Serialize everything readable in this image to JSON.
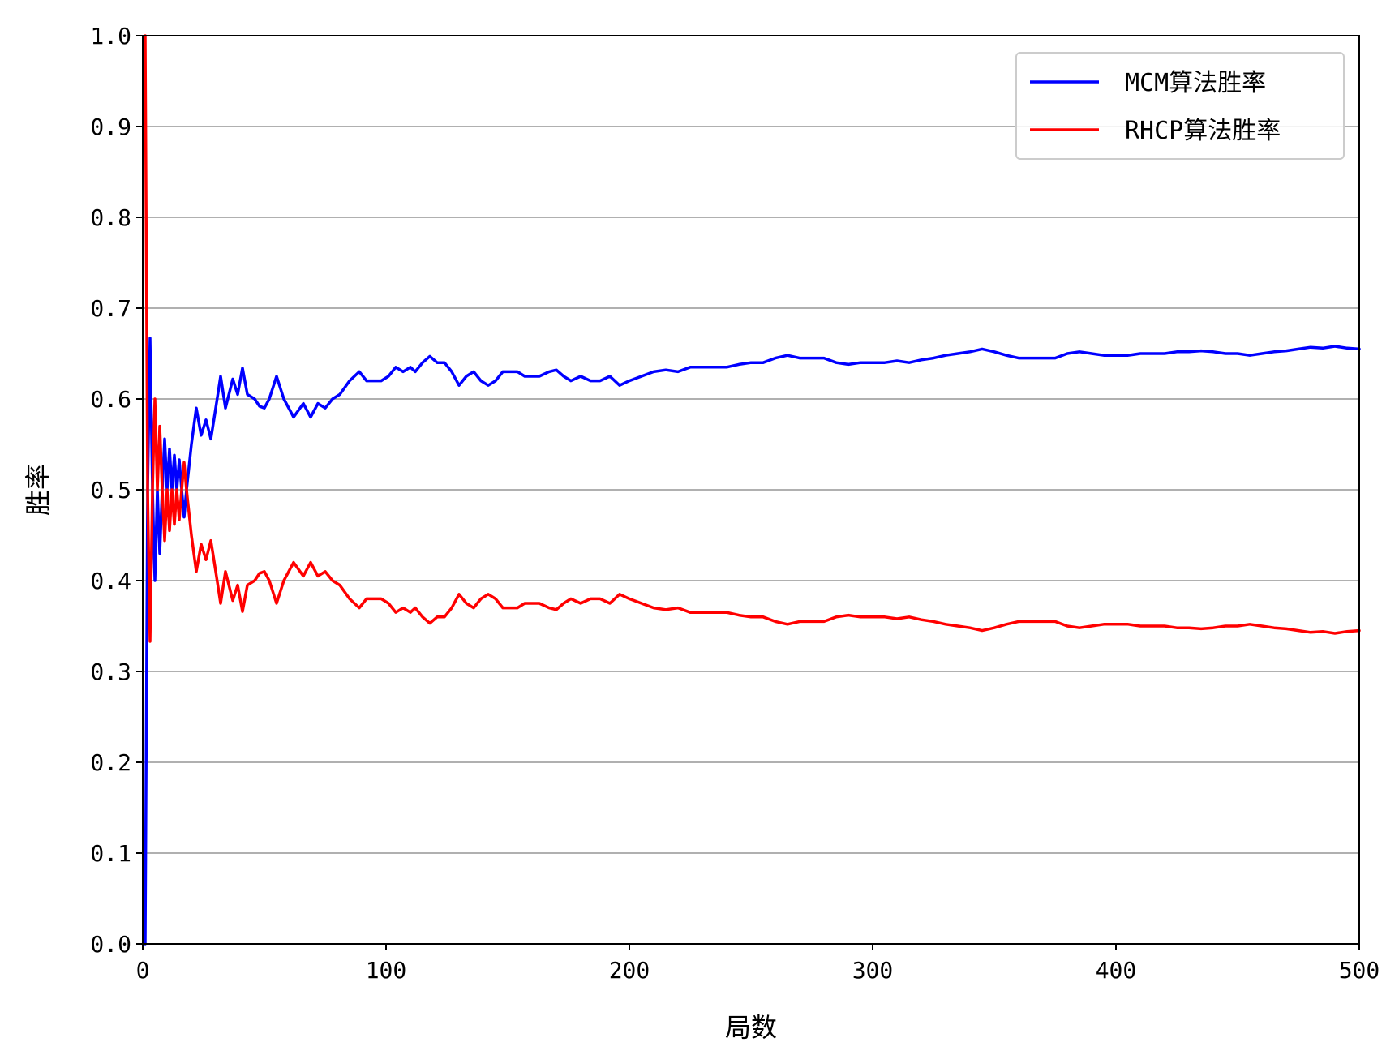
{
  "chart_data": {
    "type": "line",
    "title": "",
    "xlabel": "局数",
    "ylabel": "胜率",
    "xlim": [
      0,
      500
    ],
    "ylim": [
      0.0,
      1.0
    ],
    "x_ticks": [
      "0",
      "100",
      "200",
      "300",
      "400",
      "500"
    ],
    "y_ticks": [
      "0.0",
      "0.1",
      "0.2",
      "0.3",
      "0.4",
      "0.5",
      "0.6",
      "0.7",
      "0.8",
      "0.9",
      "1.0"
    ],
    "grid": "horizontal",
    "legend_position": "top-right",
    "series": [
      {
        "name": "MCM算法胜率",
        "color": "#0000ff",
        "points": [
          [
            1,
            0.0
          ],
          [
            2,
            0.5
          ],
          [
            3,
            0.667
          ],
          [
            4,
            0.5
          ],
          [
            5,
            0.4
          ],
          [
            6,
            0.5
          ],
          [
            7,
            0.43
          ],
          [
            8,
            0.5
          ],
          [
            9,
            0.556
          ],
          [
            10,
            0.5
          ],
          [
            11,
            0.545
          ],
          [
            12,
            0.5
          ],
          [
            13,
            0.538
          ],
          [
            14,
            0.5
          ],
          [
            15,
            0.533
          ],
          [
            16,
            0.5
          ],
          [
            17,
            0.47
          ],
          [
            18,
            0.5
          ],
          [
            20,
            0.55
          ],
          [
            22,
            0.59
          ],
          [
            24,
            0.56
          ],
          [
            26,
            0.577
          ],
          [
            28,
            0.556
          ],
          [
            30,
            0.59
          ],
          [
            32,
            0.625
          ],
          [
            34,
            0.59
          ],
          [
            37,
            0.622
          ],
          [
            39,
            0.605
          ],
          [
            41,
            0.634
          ],
          [
            43,
            0.605
          ],
          [
            46,
            0.6
          ],
          [
            48,
            0.592
          ],
          [
            50,
            0.59
          ],
          [
            52,
            0.6
          ],
          [
            55,
            0.625
          ],
          [
            58,
            0.6
          ],
          [
            62,
            0.58
          ],
          [
            66,
            0.595
          ],
          [
            69,
            0.58
          ],
          [
            72,
            0.595
          ],
          [
            75,
            0.59
          ],
          [
            78,
            0.6
          ],
          [
            81,
            0.605
          ],
          [
            85,
            0.62
          ],
          [
            89,
            0.63
          ],
          [
            92,
            0.62
          ],
          [
            95,
            0.62
          ],
          [
            98,
            0.62
          ],
          [
            101,
            0.625
          ],
          [
            104,
            0.635
          ],
          [
            107,
            0.63
          ],
          [
            110,
            0.635
          ],
          [
            112,
            0.63
          ],
          [
            115,
            0.64
          ],
          [
            118,
            0.647
          ],
          [
            121,
            0.64
          ],
          [
            124,
            0.64
          ],
          [
            127,
            0.63
          ],
          [
            130,
            0.615
          ],
          [
            133,
            0.625
          ],
          [
            136,
            0.63
          ],
          [
            139,
            0.62
          ],
          [
            142,
            0.615
          ],
          [
            145,
            0.62
          ],
          [
            148,
            0.63
          ],
          [
            151,
            0.63
          ],
          [
            154,
            0.63
          ],
          [
            157,
            0.625
          ],
          [
            160,
            0.625
          ],
          [
            163,
            0.625
          ],
          [
            167,
            0.63
          ],
          [
            170,
            0.632
          ],
          [
            173,
            0.625
          ],
          [
            176,
            0.62
          ],
          [
            180,
            0.625
          ],
          [
            184,
            0.62
          ],
          [
            188,
            0.62
          ],
          [
            192,
            0.625
          ],
          [
            196,
            0.615
          ],
          [
            200,
            0.62
          ],
          [
            205,
            0.625
          ],
          [
            210,
            0.63
          ],
          [
            215,
            0.632
          ],
          [
            220,
            0.63
          ],
          [
            225,
            0.635
          ],
          [
            230,
            0.635
          ],
          [
            235,
            0.635
          ],
          [
            240,
            0.635
          ],
          [
            245,
            0.638
          ],
          [
            250,
            0.64
          ],
          [
            255,
            0.64
          ],
          [
            260,
            0.645
          ],
          [
            265,
            0.648
          ],
          [
            270,
            0.645
          ],
          [
            275,
            0.645
          ],
          [
            280,
            0.645
          ],
          [
            285,
            0.64
          ],
          [
            290,
            0.638
          ],
          [
            295,
            0.64
          ],
          [
            300,
            0.64
          ],
          [
            305,
            0.64
          ],
          [
            310,
            0.642
          ],
          [
            315,
            0.64
          ],
          [
            320,
            0.643
          ],
          [
            325,
            0.645
          ],
          [
            330,
            0.648
          ],
          [
            335,
            0.65
          ],
          [
            340,
            0.652
          ],
          [
            345,
            0.655
          ],
          [
            350,
            0.652
          ],
          [
            355,
            0.648
          ],
          [
            360,
            0.645
          ],
          [
            365,
            0.645
          ],
          [
            370,
            0.645
          ],
          [
            375,
            0.645
          ],
          [
            380,
            0.65
          ],
          [
            385,
            0.652
          ],
          [
            390,
            0.65
          ],
          [
            395,
            0.648
          ],
          [
            400,
            0.648
          ],
          [
            405,
            0.648
          ],
          [
            410,
            0.65
          ],
          [
            415,
            0.65
          ],
          [
            420,
            0.65
          ],
          [
            425,
            0.652
          ],
          [
            430,
            0.652
          ],
          [
            435,
            0.653
          ],
          [
            440,
            0.652
          ],
          [
            445,
            0.65
          ],
          [
            450,
            0.65
          ],
          [
            455,
            0.648
          ],
          [
            460,
            0.65
          ],
          [
            465,
            0.652
          ],
          [
            470,
            0.653
          ],
          [
            475,
            0.655
          ],
          [
            480,
            0.657
          ],
          [
            485,
            0.656
          ],
          [
            490,
            0.658
          ],
          [
            495,
            0.656
          ],
          [
            500,
            0.655
          ]
        ]
      },
      {
        "name": "RHCP算法胜率",
        "color": "#ff0000",
        "points": [
          [
            1,
            1.0
          ],
          [
            2,
            0.5
          ],
          [
            3,
            0.333
          ],
          [
            4,
            0.5
          ],
          [
            5,
            0.6
          ],
          [
            6,
            0.5
          ],
          [
            7,
            0.57
          ],
          [
            8,
            0.5
          ],
          [
            9,
            0.444
          ],
          [
            10,
            0.5
          ],
          [
            11,
            0.455
          ],
          [
            12,
            0.5
          ],
          [
            13,
            0.462
          ],
          [
            14,
            0.5
          ],
          [
            15,
            0.467
          ],
          [
            16,
            0.5
          ],
          [
            17,
            0.53
          ],
          [
            18,
            0.5
          ],
          [
            20,
            0.45
          ],
          [
            22,
            0.41
          ],
          [
            24,
            0.44
          ],
          [
            26,
            0.423
          ],
          [
            28,
            0.444
          ],
          [
            30,
            0.41
          ],
          [
            32,
            0.375
          ],
          [
            34,
            0.41
          ],
          [
            37,
            0.378
          ],
          [
            39,
            0.395
          ],
          [
            41,
            0.366
          ],
          [
            43,
            0.395
          ],
          [
            46,
            0.4
          ],
          [
            48,
            0.408
          ],
          [
            50,
            0.41
          ],
          [
            52,
            0.4
          ],
          [
            55,
            0.375
          ],
          [
            58,
            0.4
          ],
          [
            62,
            0.42
          ],
          [
            66,
            0.405
          ],
          [
            69,
            0.42
          ],
          [
            72,
            0.405
          ],
          [
            75,
            0.41
          ],
          [
            78,
            0.4
          ],
          [
            81,
            0.395
          ],
          [
            85,
            0.38
          ],
          [
            89,
            0.37
          ],
          [
            92,
            0.38
          ],
          [
            95,
            0.38
          ],
          [
            98,
            0.38
          ],
          [
            101,
            0.375
          ],
          [
            104,
            0.365
          ],
          [
            107,
            0.37
          ],
          [
            110,
            0.365
          ],
          [
            112,
            0.37
          ],
          [
            115,
            0.36
          ],
          [
            118,
            0.353
          ],
          [
            121,
            0.36
          ],
          [
            124,
            0.36
          ],
          [
            127,
            0.37
          ],
          [
            130,
            0.385
          ],
          [
            133,
            0.375
          ],
          [
            136,
            0.37
          ],
          [
            139,
            0.38
          ],
          [
            142,
            0.385
          ],
          [
            145,
            0.38
          ],
          [
            148,
            0.37
          ],
          [
            151,
            0.37
          ],
          [
            154,
            0.37
          ],
          [
            157,
            0.375
          ],
          [
            160,
            0.375
          ],
          [
            163,
            0.375
          ],
          [
            167,
            0.37
          ],
          [
            170,
            0.368
          ],
          [
            173,
            0.375
          ],
          [
            176,
            0.38
          ],
          [
            180,
            0.375
          ],
          [
            184,
            0.38
          ],
          [
            188,
            0.38
          ],
          [
            192,
            0.375
          ],
          [
            196,
            0.385
          ],
          [
            200,
            0.38
          ],
          [
            205,
            0.375
          ],
          [
            210,
            0.37
          ],
          [
            215,
            0.368
          ],
          [
            220,
            0.37
          ],
          [
            225,
            0.365
          ],
          [
            230,
            0.365
          ],
          [
            235,
            0.365
          ],
          [
            240,
            0.365
          ],
          [
            245,
            0.362
          ],
          [
            250,
            0.36
          ],
          [
            255,
            0.36
          ],
          [
            260,
            0.355
          ],
          [
            265,
            0.352
          ],
          [
            270,
            0.355
          ],
          [
            275,
            0.355
          ],
          [
            280,
            0.355
          ],
          [
            285,
            0.36
          ],
          [
            290,
            0.362
          ],
          [
            295,
            0.36
          ],
          [
            300,
            0.36
          ],
          [
            305,
            0.36
          ],
          [
            310,
            0.358
          ],
          [
            315,
            0.36
          ],
          [
            320,
            0.357
          ],
          [
            325,
            0.355
          ],
          [
            330,
            0.352
          ],
          [
            335,
            0.35
          ],
          [
            340,
            0.348
          ],
          [
            345,
            0.345
          ],
          [
            350,
            0.348
          ],
          [
            355,
            0.352
          ],
          [
            360,
            0.355
          ],
          [
            365,
            0.355
          ],
          [
            370,
            0.355
          ],
          [
            375,
            0.355
          ],
          [
            380,
            0.35
          ],
          [
            385,
            0.348
          ],
          [
            390,
            0.35
          ],
          [
            395,
            0.352
          ],
          [
            400,
            0.352
          ],
          [
            405,
            0.352
          ],
          [
            410,
            0.35
          ],
          [
            415,
            0.35
          ],
          [
            420,
            0.35
          ],
          [
            425,
            0.348
          ],
          [
            430,
            0.348
          ],
          [
            435,
            0.347
          ],
          [
            440,
            0.348
          ],
          [
            445,
            0.35
          ],
          [
            450,
            0.35
          ],
          [
            455,
            0.352
          ],
          [
            460,
            0.35
          ],
          [
            465,
            0.348
          ],
          [
            470,
            0.347
          ],
          [
            475,
            0.345
          ],
          [
            480,
            0.343
          ],
          [
            485,
            0.344
          ],
          [
            490,
            0.342
          ],
          [
            495,
            0.344
          ],
          [
            500,
            0.345
          ]
        ]
      }
    ]
  }
}
